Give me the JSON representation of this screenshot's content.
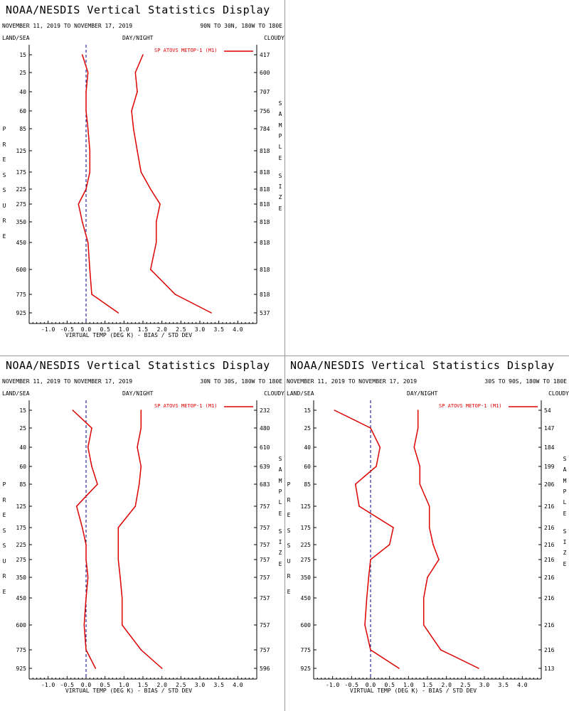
{
  "header": {
    "title": "NOAA/NESDIS Vertical Statistics Display",
    "dates": "NOVEMBER 11, 2019 TO NOVEMBER 17, 2019",
    "land_sea": "LAND/SEA",
    "day_night": "DAY/NIGHT",
    "cloudy": "CLOUDY",
    "pressure_label": "PRESSURE",
    "sample_size_label": "SAMPLE SIZE"
  },
  "colors": {
    "series": "#dd0000",
    "zero_line": "#000080"
  },
  "chart_data": [
    {
      "type": "line",
      "region": "90N TO 30N, 180W TO 180E",
      "legend": "SP ATOVS METOP-1 (M1)",
      "xlabel": "VIRTUAL TEMP (DEG K) - BIAS / STD DEV",
      "xlim": [
        -1.5,
        4.5
      ],
      "xticks": [
        "-1.0",
        "-0.5",
        "0.0",
        "0.5",
        "1.0",
        "1.5",
        "2.0",
        "2.5",
        "3.0",
        "3.5",
        "4.0"
      ],
      "pressure_levels": [
        "15",
        "25",
        "40",
        "60",
        "85",
        "125",
        "175",
        "225",
        "275",
        "350",
        "450",
        "600",
        "775",
        "925"
      ],
      "sample_size": [
        "417",
        "600",
        "707",
        "756",
        "784",
        "818",
        "818",
        "818",
        "818",
        "818",
        "818",
        "818",
        "818",
        "537"
      ],
      "series": [
        {
          "name": "bias",
          "values": [
            -0.1,
            0.05,
            0.0,
            0.0,
            0.05,
            0.1,
            0.1,
            0.0,
            -0.2,
            -0.1,
            0.05,
            0.1,
            0.15,
            0.85
          ]
        },
        {
          "name": "std_dev",
          "values": [
            1.5,
            1.3,
            1.35,
            1.2,
            1.25,
            1.35,
            1.45,
            1.7,
            1.95,
            1.85,
            1.85,
            1.7,
            2.35,
            3.3
          ]
        }
      ]
    },
    {
      "type": "line",
      "region": "30N TO 30S, 180W TO 180E",
      "legend": "SP ATOVS METOP-1 (M1)",
      "xlabel": "VIRTUAL TEMP (DEG K) - BIAS / STD DEV",
      "xlim": [
        -1.5,
        4.5
      ],
      "xticks": [
        "-1.0",
        "-0.5",
        "0.0",
        "0.5",
        "1.0",
        "1.5",
        "2.0",
        "2.5",
        "3.0",
        "3.5",
        "4.0"
      ],
      "pressure_levels": [
        "15",
        "25",
        "40",
        "60",
        "85",
        "125",
        "175",
        "225",
        "275",
        "350",
        "450",
        "600",
        "775",
        "925"
      ],
      "sample_size": [
        "232",
        "480",
        "610",
        "639",
        "683",
        "757",
        "757",
        "757",
        "757",
        "757",
        "757",
        "757",
        "757",
        "596"
      ],
      "series": [
        {
          "name": "bias",
          "values": [
            -0.35,
            0.15,
            0.05,
            0.15,
            0.3,
            -0.25,
            -0.1,
            0.0,
            0.0,
            0.05,
            0.0,
            -0.05,
            0.0,
            0.25
          ]
        },
        {
          "name": "std_dev",
          "values": [
            1.45,
            1.45,
            1.35,
            1.45,
            1.4,
            1.3,
            0.85,
            0.85,
            0.85,
            0.9,
            0.95,
            0.95,
            1.45,
            2.0
          ]
        }
      ]
    },
    {
      "type": "line",
      "region": "30S TO 90S, 180W TO 180E",
      "legend": "SP ATOVS METOP-1 (M1)",
      "xlabel": "VIRTUAL TEMP (DEG K) - BIAS / STD DEV",
      "xlim": [
        -1.5,
        4.5
      ],
      "xticks": [
        "-1.0",
        "-0.5",
        "0.0",
        "0.5",
        "1.0",
        "1.5",
        "2.0",
        "2.5",
        "3.0",
        "3.5",
        "4.0"
      ],
      "pressure_levels": [
        "15",
        "25",
        "40",
        "60",
        "85",
        "125",
        "175",
        "225",
        "275",
        "350",
        "450",
        "600",
        "775",
        "925"
      ],
      "sample_size": [
        "54",
        "147",
        "184",
        "199",
        "206",
        "216",
        "216",
        "216",
        "216",
        "216",
        "216",
        "216",
        "216",
        "113"
      ],
      "series": [
        {
          "name": "bias",
          "values": [
            -0.95,
            0.0,
            0.25,
            0.15,
            -0.4,
            -0.3,
            0.6,
            0.5,
            0.0,
            -0.05,
            -0.1,
            -0.15,
            0.0,
            0.75
          ]
        },
        {
          "name": "std_dev",
          "values": [
            1.25,
            1.25,
            1.15,
            1.3,
            1.3,
            1.55,
            1.55,
            1.65,
            1.8,
            1.5,
            1.4,
            1.4,
            1.85,
            2.85
          ]
        }
      ]
    }
  ]
}
